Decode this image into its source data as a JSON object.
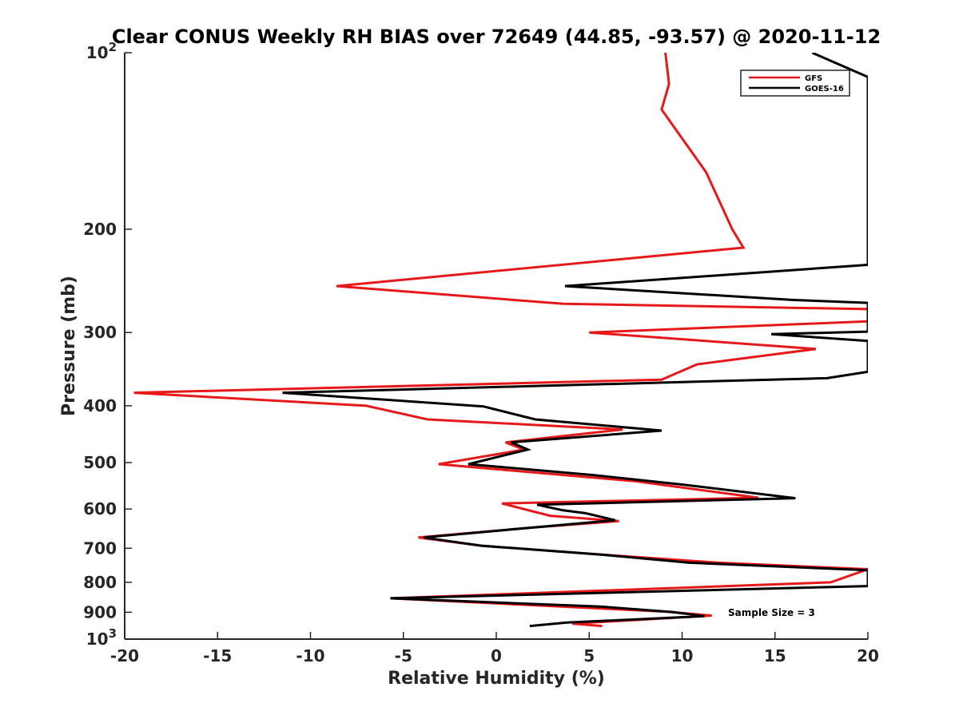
{
  "chart_data": {
    "type": "line",
    "title": "Clear CONUS Weekly RH BIAS over 72649 (44.85, -93.57) @ 2020-11-12",
    "xlabel": "Relative Humidity (%)",
    "ylabel": "Pressure (mb)",
    "xlim": [
      -20,
      20
    ],
    "ylim": [
      100,
      1000
    ],
    "y_scale": "log",
    "y_reversed": true,
    "grid": false,
    "legend_position": "top-right",
    "x_ticks": [
      -20,
      -15,
      -10,
      -5,
      0,
      5,
      10,
      15,
      20
    ],
    "x_tick_labels": [
      "-20",
      "-15",
      "-10",
      "-5",
      "0",
      "5",
      "10",
      "15",
      "20"
    ],
    "y_ticks": [
      100,
      200,
      300,
      400,
      500,
      600,
      700,
      800,
      900,
      1000
    ],
    "y_tick_labels": [
      {
        "base": "10",
        "sup": "2"
      },
      {
        "base": "200",
        "sup": ""
      },
      {
        "base": "300",
        "sup": ""
      },
      {
        "base": "400",
        "sup": ""
      },
      {
        "base": "500",
        "sup": ""
      },
      {
        "base": "600",
        "sup": ""
      },
      {
        "base": "700",
        "sup": ""
      },
      {
        "base": "800",
        "sup": ""
      },
      {
        "base": "900",
        "sup": ""
      },
      {
        "base": "10",
        "sup": "3"
      }
    ],
    "annotation": "Sample Size = 3",
    "series": [
      {
        "name": "GFS",
        "color": "#e6191a",
        "points": [
          [
            9.1,
            100
          ],
          [
            9.3,
            113
          ],
          [
            8.9,
            125
          ],
          [
            10.0,
            140
          ],
          [
            11.3,
            160
          ],
          [
            12.7,
            200
          ],
          [
            13.3,
            215
          ],
          [
            -8.6,
            250
          ],
          [
            3.6,
            268
          ],
          [
            21.0,
            274
          ],
          [
            20.2,
            287
          ],
          [
            5.0,
            300
          ],
          [
            17.2,
            320
          ],
          [
            10.8,
            340
          ],
          [
            8.9,
            361
          ],
          [
            -19.5,
            380
          ],
          [
            -7.0,
            400
          ],
          [
            -3.7,
            422
          ],
          [
            6.8,
            439
          ],
          [
            0.5,
            462
          ],
          [
            1.5,
            475
          ],
          [
            -3.1,
            503
          ],
          [
            7.5,
            538
          ],
          [
            14.1,
            574
          ],
          [
            0.3,
            587
          ],
          [
            2.9,
            616
          ],
          [
            6.6,
            629
          ],
          [
            2.0,
            645
          ],
          [
            -4.2,
            671
          ],
          [
            -0.8,
            693
          ],
          [
            5.8,
            718
          ],
          [
            12.0,
            741
          ],
          [
            20.0,
            760
          ],
          [
            18.0,
            800
          ],
          [
            -5.7,
            852
          ],
          [
            9.2,
            898
          ],
          [
            11.6,
            912
          ],
          [
            4.1,
            941
          ],
          [
            5.7,
            950
          ]
        ]
      },
      {
        "name": "GOES-16",
        "color": "#000000",
        "points": [
          [
            17.0,
            100
          ],
          [
            20.0,
            110
          ],
          [
            20.0,
            230
          ],
          [
            3.7,
            250
          ],
          [
            16.0,
            264
          ],
          [
            20.0,
            267
          ],
          [
            20.0,
            299
          ],
          [
            14.8,
            302
          ],
          [
            20.0,
            310
          ],
          [
            20.0,
            350
          ],
          [
            17.8,
            359
          ],
          [
            -11.5,
            380
          ],
          [
            -0.7,
            401
          ],
          [
            2.1,
            422
          ],
          [
            8.9,
            441
          ],
          [
            0.8,
            462
          ],
          [
            1.7,
            475
          ],
          [
            -1.5,
            503
          ],
          [
            5.2,
            525
          ],
          [
            10.0,
            545
          ],
          [
            16.1,
            575
          ],
          [
            2.2,
            590
          ],
          [
            3.6,
            603
          ],
          [
            4.8,
            610
          ],
          [
            6.4,
            627
          ],
          [
            2.0,
            645
          ],
          [
            -3.9,
            671
          ],
          [
            -0.8,
            693
          ],
          [
            5.7,
            718
          ],
          [
            10.4,
            741
          ],
          [
            20.0,
            763
          ],
          [
            20.0,
            812
          ],
          [
            -5.7,
            852
          ],
          [
            5.6,
            880
          ],
          [
            9.5,
            899
          ],
          [
            11.2,
            914
          ],
          [
            3.8,
            937
          ],
          [
            1.8,
            950
          ]
        ]
      }
    ]
  }
}
